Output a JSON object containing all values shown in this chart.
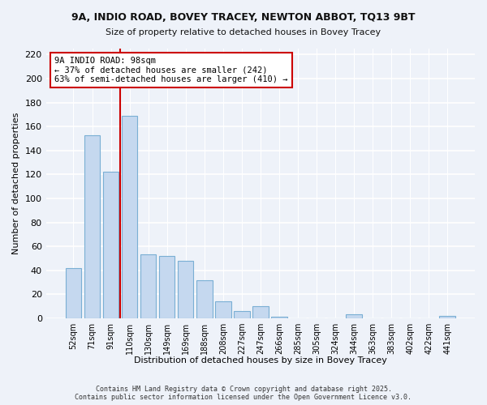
{
  "title1": "9A, INDIO ROAD, BOVEY TRACEY, NEWTON ABBOT, TQ13 9BT",
  "title2": "Size of property relative to detached houses in Bovey Tracey",
  "xlabel": "Distribution of detached houses by size in Bovey Tracey",
  "ylabel": "Number of detached properties",
  "bar_labels": [
    "52sqm",
    "71sqm",
    "91sqm",
    "110sqm",
    "130sqm",
    "149sqm",
    "169sqm",
    "188sqm",
    "208sqm",
    "227sqm",
    "247sqm",
    "266sqm",
    "285sqm",
    "305sqm",
    "324sqm",
    "344sqm",
    "363sqm",
    "383sqm",
    "402sqm",
    "422sqm",
    "441sqm"
  ],
  "bar_values": [
    42,
    153,
    122,
    169,
    53,
    52,
    48,
    32,
    14,
    6,
    10,
    1,
    0,
    0,
    0,
    3,
    0,
    0,
    0,
    0,
    2
  ],
  "bar_color": "#c5d8ef",
  "bar_edge_color": "#7aafd4",
  "vline_x": 2.5,
  "vline_color": "#cc0000",
  "annotation_title": "9A INDIO ROAD: 98sqm",
  "annotation_line1": "← 37% of detached houses are smaller (242)",
  "annotation_line2": "63% of semi-detached houses are larger (410) →",
  "annotation_box_color": "#ffffff",
  "annotation_box_edge": "#cc0000",
  "ylim": [
    0,
    225
  ],
  "yticks": [
    0,
    20,
    40,
    60,
    80,
    100,
    120,
    140,
    160,
    180,
    200,
    220
  ],
  "background_color": "#eef2f9",
  "footer1": "Contains HM Land Registry data © Crown copyright and database right 2025.",
  "footer2": "Contains public sector information licensed under the Open Government Licence v3.0."
}
